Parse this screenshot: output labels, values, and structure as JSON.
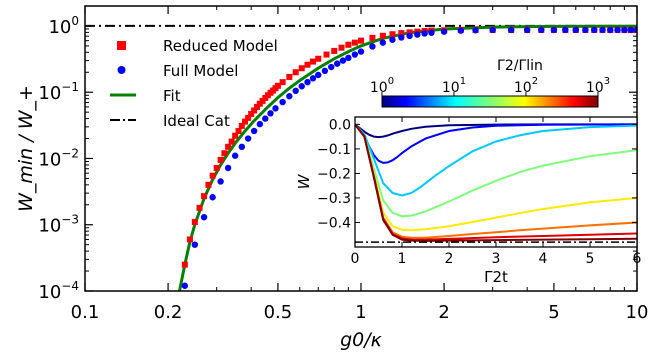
{
  "chart_data": [
    {
      "type": "scatter",
      "xlabel": "g0/κ",
      "ylabel": "W_min / W_+",
      "xscale": "log",
      "yscale": "log",
      "xlim": [
        0.1,
        10
      ],
      "ylim": [
        0.0001,
        2
      ],
      "xticks": [
        "0.1",
        "0.2",
        "0.5",
        "1",
        "2",
        "5",
        "10"
      ],
      "yticks": [
        "10^0",
        "10^-1",
        "10^-2",
        "10^-3",
        "10^-4"
      ],
      "legend_position": "top-left",
      "legend": [
        "Reduced Model",
        "Full Model",
        "Fit",
        "Ideal Cat"
      ],
      "series": [
        {
          "name": "Reduced Model",
          "marker": "square",
          "color": "#ff0000",
          "x": [
            0.23,
            0.24,
            0.25,
            0.26,
            0.27,
            0.28,
            0.29,
            0.3,
            0.31,
            0.32,
            0.33,
            0.34,
            0.35,
            0.36,
            0.37,
            0.38,
            0.39,
            0.4,
            0.41,
            0.42,
            0.43,
            0.44,
            0.45,
            0.46,
            0.47,
            0.48,
            0.49,
            0.5,
            0.52,
            0.55,
            0.58,
            0.61,
            0.64,
            0.67,
            0.7,
            0.75,
            0.8,
            0.85,
            0.9,
            0.95,
            1.0,
            1.1,
            1.2,
            1.3,
            1.4,
            1.5,
            1.6,
            1.7,
            1.8,
            2.0,
            2.3,
            2.6,
            3.0,
            3.5,
            4.0,
            4.5,
            5.0,
            5.5,
            6.0,
            6.5,
            7.0,
            7.5,
            8.0,
            8.5,
            9.0,
            9.5,
            10.0
          ],
          "values": [
            0.00025,
            0.0006,
            0.0011,
            0.0018,
            0.0027,
            0.004,
            0.0055,
            0.0072,
            0.0095,
            0.012,
            0.015,
            0.018,
            0.022,
            0.026,
            0.031,
            0.036,
            0.041,
            0.047,
            0.053,
            0.06,
            0.067,
            0.074,
            0.082,
            0.09,
            0.098,
            0.106,
            0.115,
            0.125,
            0.142,
            0.17,
            0.2,
            0.23,
            0.26,
            0.29,
            0.32,
            0.37,
            0.42,
            0.47,
            0.52,
            0.56,
            0.6,
            0.66,
            0.71,
            0.75,
            0.78,
            0.8,
            0.82,
            0.84,
            0.85,
            0.86,
            0.87,
            0.87,
            0.87,
            0.87,
            0.87,
            0.87,
            0.87,
            0.87,
            0.87,
            0.87,
            0.87,
            0.87,
            0.87,
            0.87,
            0.87,
            0.87,
            0.87
          ]
        },
        {
          "name": "Full Model",
          "marker": "circle",
          "color": "#0000ff",
          "x": [
            0.23,
            0.25,
            0.27,
            0.29,
            0.31,
            0.33,
            0.35,
            0.37,
            0.39,
            0.41,
            0.43,
            0.45,
            0.47,
            0.49,
            0.52,
            0.55,
            0.58,
            0.61,
            0.64,
            0.67,
            0.7,
            0.74,
            0.78,
            0.82,
            0.86,
            0.9,
            0.95,
            1.0,
            1.1,
            1.2,
            1.3,
            1.4,
            1.5,
            1.6,
            1.7,
            1.8,
            2.0,
            2.3,
            2.6,
            3.0,
            3.5,
            4.0,
            4.5,
            5.0,
            5.5,
            6.0,
            6.5,
            7.0,
            7.5,
            8.0,
            8.5,
            9.0,
            9.5,
            10.0
          ],
          "values": [
            0.00012,
            0.0005,
            0.0013,
            0.0026,
            0.0045,
            0.0072,
            0.011,
            0.015,
            0.02,
            0.026,
            0.033,
            0.04,
            0.048,
            0.057,
            0.071,
            0.087,
            0.105,
            0.123,
            0.142,
            0.162,
            0.182,
            0.21,
            0.24,
            0.27,
            0.3,
            0.33,
            0.37,
            0.41,
            0.49,
            0.56,
            0.62,
            0.67,
            0.71,
            0.74,
            0.77,
            0.79,
            0.82,
            0.85,
            0.86,
            0.87,
            0.87,
            0.87,
            0.87,
            0.87,
            0.87,
            0.87,
            0.87,
            0.87,
            0.87,
            0.87,
            0.87,
            0.87,
            0.87,
            0.87
          ]
        },
        {
          "name": "Fit",
          "line": "solid",
          "color": "#008000",
          "x": [
            0.22,
            0.23,
            0.24,
            0.25,
            0.27,
            0.29,
            0.31,
            0.33,
            0.35,
            0.38,
            0.41,
            0.45,
            0.5,
            0.55,
            0.6,
            0.7,
            0.8,
            0.9,
            1.0,
            1.2,
            1.5,
            2.0,
            3.0,
            5.0,
            7.0,
            10.0
          ],
          "values": [
            0.0001,
            0.00025,
            0.00055,
            0.001,
            0.0025,
            0.0048,
            0.008,
            0.012,
            0.017,
            0.026,
            0.037,
            0.055,
            0.083,
            0.115,
            0.15,
            0.23,
            0.32,
            0.41,
            0.5,
            0.65,
            0.79,
            0.9,
            0.96,
            0.985,
            0.99,
            0.99
          ]
        },
        {
          "name": "Ideal Cat",
          "line": "dashdot",
          "color": "#000000",
          "x": [
            0.1,
            10.0
          ],
          "values": [
            1.0,
            1.0
          ]
        }
      ]
    },
    {
      "type": "line",
      "xlabel": "Γ2t",
      "ylabel": "W",
      "xlim": [
        0,
        6
      ],
      "ylim": [
        -0.5,
        0.03
      ],
      "xticks": [
        "0",
        "1",
        "2",
        "3",
        "4",
        "5",
        "6"
      ],
      "yticks": [
        "0.0",
        "−0.1",
        "−0.2",
        "−0.3",
        "−0.4"
      ],
      "colorbar": {
        "label": "Γ2/Γlin",
        "scale": "log",
        "range": [
          1,
          1000
        ],
        "ticks": [
          "10^0",
          "10^1",
          "10^2",
          "10^3"
        ],
        "colormap": "jet"
      },
      "reference_line": {
        "y": -0.48,
        "style": "dashdot",
        "color": "#000000"
      },
      "series": [
        {
          "color": "#00007f",
          "x": [
            0,
            0.1,
            0.2,
            0.3,
            0.4,
            0.5,
            0.6,
            0.7,
            0.8,
            1.0,
            1.2,
            1.5,
            2.0,
            3.0,
            4.0,
            6.0
          ],
          "values": [
            0.0,
            -0.015,
            -0.03,
            -0.042,
            -0.05,
            -0.052,
            -0.05,
            -0.045,
            -0.038,
            -0.027,
            -0.018,
            -0.01,
            -0.004,
            -0.001,
            0.0,
            0.0
          ]
        },
        {
          "color": "#0000ff",
          "x": [
            0,
            0.1,
            0.2,
            0.3,
            0.4,
            0.5,
            0.6,
            0.7,
            0.8,
            0.9,
            1.0,
            1.2,
            1.5,
            2.0,
            2.5,
            3.0,
            4.0,
            6.0
          ],
          "values": [
            0.0,
            -0.02,
            -0.05,
            -0.09,
            -0.125,
            -0.148,
            -0.157,
            -0.155,
            -0.146,
            -0.133,
            -0.117,
            -0.09,
            -0.058,
            -0.027,
            -0.013,
            -0.006,
            -0.002,
            0.0
          ]
        },
        {
          "color": "#00c8ff",
          "x": [
            0,
            0.2,
            0.4,
            0.6,
            0.8,
            1.0,
            1.2,
            1.4,
            1.7,
            2.0,
            2.5,
            3.0,
            3.5,
            4.0,
            5.0,
            6.0
          ],
          "values": [
            0.0,
            -0.04,
            -0.14,
            -0.24,
            -0.28,
            -0.29,
            -0.28,
            -0.255,
            -0.21,
            -0.17,
            -0.11,
            -0.07,
            -0.045,
            -0.027,
            -0.011,
            -0.005
          ]
        },
        {
          "color": "#7dff7a",
          "x": [
            0,
            0.2,
            0.4,
            0.6,
            0.8,
            1.0,
            1.2,
            1.5,
            2.0,
            2.5,
            3.0,
            3.5,
            4.0,
            5.0,
            6.0
          ],
          "values": [
            0.0,
            -0.05,
            -0.18,
            -0.31,
            -0.36,
            -0.375,
            -0.372,
            -0.355,
            -0.315,
            -0.27,
            -0.23,
            -0.195,
            -0.168,
            -0.13,
            -0.105
          ]
        },
        {
          "color": "#ffea00",
          "x": [
            0,
            0.2,
            0.4,
            0.6,
            0.8,
            1.0,
            1.2,
            1.5,
            2.0,
            2.5,
            3.0,
            3.5,
            4.0,
            5.0,
            6.0
          ],
          "values": [
            0.0,
            -0.05,
            -0.2,
            -0.36,
            -0.415,
            -0.43,
            -0.432,
            -0.428,
            -0.415,
            -0.398,
            -0.38,
            -0.362,
            -0.345,
            -0.318,
            -0.3
          ]
        },
        {
          "color": "#ff7000",
          "x": [
            0,
            0.2,
            0.4,
            0.6,
            0.8,
            1.0,
            1.2,
            1.5,
            2.0,
            2.5,
            3.0,
            3.5,
            4.0,
            5.0,
            6.0
          ],
          "values": [
            0.0,
            -0.05,
            -0.21,
            -0.38,
            -0.44,
            -0.458,
            -0.462,
            -0.462,
            -0.455,
            -0.447,
            -0.44,
            -0.432,
            -0.425,
            -0.412,
            -0.4
          ]
        },
        {
          "color": "#e00000",
          "x": [
            0,
            0.2,
            0.4,
            0.6,
            0.8,
            1.0,
            1.2,
            1.5,
            2.0,
            3.0,
            4.0,
            5.0,
            6.0
          ],
          "values": [
            0.0,
            -0.05,
            -0.21,
            -0.385,
            -0.447,
            -0.465,
            -0.47,
            -0.47,
            -0.467,
            -0.46,
            -0.455,
            -0.45,
            -0.445
          ]
        },
        {
          "color": "#7f0000",
          "x": [
            0,
            0.2,
            0.4,
            0.6,
            0.8,
            1.0,
            1.2,
            1.5,
            2.0,
            3.0,
            4.0,
            5.0,
            6.0
          ],
          "values": [
            0.0,
            -0.05,
            -0.215,
            -0.39,
            -0.45,
            -0.47,
            -0.474,
            -0.475,
            -0.474,
            -0.472,
            -0.47,
            -0.468,
            -0.466
          ]
        }
      ]
    }
  ]
}
